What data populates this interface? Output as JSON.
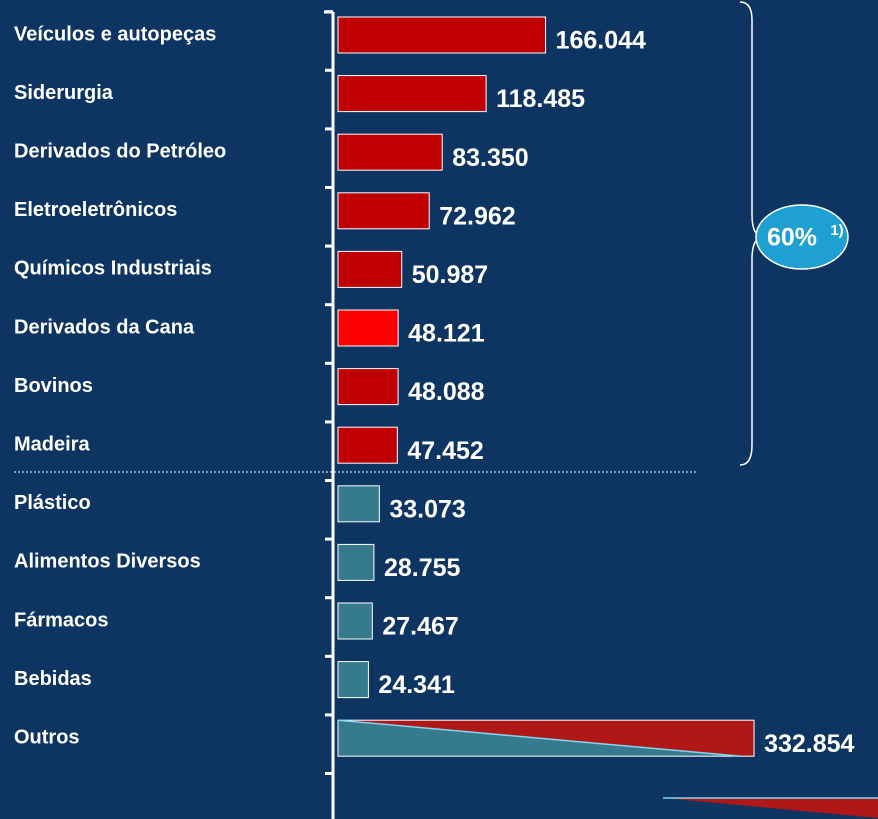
{
  "chart_data": {
    "type": "bar",
    "categories": [
      "Veículos e autopeças",
      "Siderurgia",
      "Derivados do Petróleo",
      "Eletroeletrônicos",
      "Químicos Industriais",
      "Derivados da Cana",
      "Bovinos",
      "Madeira",
      "Plástico",
      "Alimentos Diversos",
      "Fármacos",
      "Bebidas",
      "Outros"
    ],
    "values": [
      166044,
      118485,
      83350,
      72962,
      50987,
      48121,
      48088,
      47452,
      33073,
      28755,
      27467,
      24341,
      332854
    ],
    "value_labels": [
      "166.044",
      "118.485",
      "83.350",
      "72.962",
      "50.987",
      "48.121",
      "48.088",
      "47.452",
      "33.073",
      "28.755",
      "27.467",
      "24.341",
      "332.854"
    ],
    "colors": [
      "#c00000",
      "#c00000",
      "#c00000",
      "#c00000",
      "#c00000",
      "#ff0000",
      "#c00000",
      "#c00000",
      "#367a8e",
      "#367a8e",
      "#367a8e",
      "#367a8e",
      "#367a8e"
    ],
    "annotation": "60%",
    "annotation_note": "1)"
  }
}
